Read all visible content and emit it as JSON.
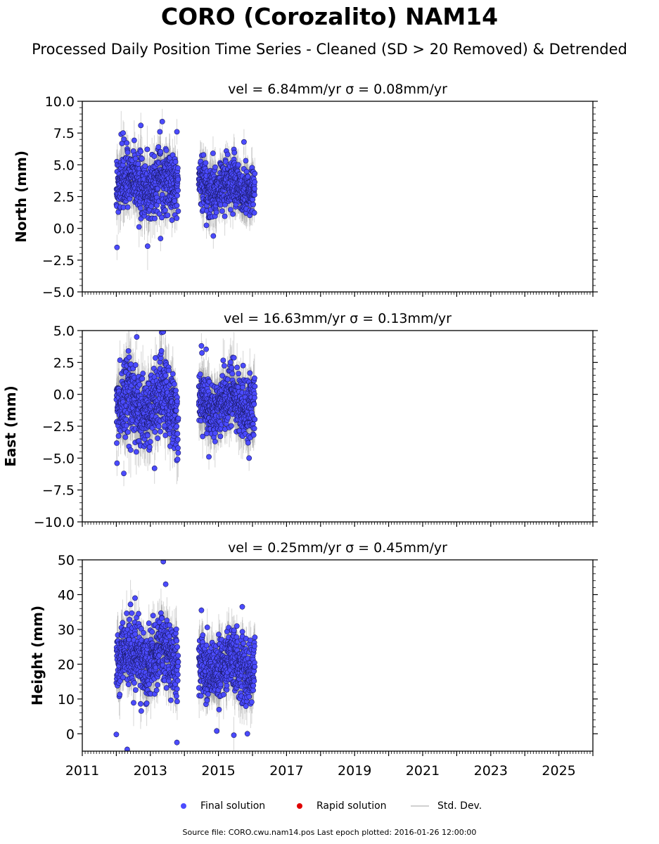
{
  "title": "CORO (Corozalito) NAM14",
  "subtitle": "Processed Daily Position Time Series - Cleaned (SD > 20 Removed) & Detrended",
  "colors": {
    "final": "#4b4bff",
    "rapid": "#e00000",
    "stddev": "#bdbdbd",
    "marker_edge": "#1a1a66"
  },
  "legend": {
    "final_label": "Final solution",
    "rapid_label": "Rapid solution",
    "stddev_label": "Std. Dev."
  },
  "source_note": "Source file: CORO.cwu.nam14.pos  Last epoch plotted: 2016-01-26 12:00:00",
  "chart_data": [
    {
      "type": "scatter",
      "title": "vel = 6.84mm/yr   σ = 0.08mm/yr",
      "ylabel": "North (mm)",
      "xlim": [
        2011.0,
        2026.0
      ],
      "ylim": [
        -5.0,
        10.0
      ],
      "yticks": [
        -5.0,
        -2.5,
        0.0,
        2.5,
        5.0,
        7.5,
        10.0
      ],
      "ytick_labels": [
        "−5.0",
        "−2.5",
        "0.0",
        "2.5",
        "5.0",
        "7.5",
        "10.0"
      ],
      "segments": [
        {
          "x_start": 2012.0,
          "x_end": 2013.82,
          "y_mean": 3.5,
          "y_spread": 1.6,
          "sigma": 1.3
        },
        {
          "x_start": 2014.42,
          "x_end": 2016.07,
          "y_mean": 3.3,
          "y_spread": 1.3,
          "sigma": 1.2
        }
      ],
      "highlight_points": [
        {
          "x": 2012.02,
          "y": -1.5
        },
        {
          "x": 2012.2,
          "y": 7.5
        },
        {
          "x": 2012.72,
          "y": 8.1
        },
        {
          "x": 2013.35,
          "y": 8.4
        },
        {
          "x": 2013.28,
          "y": 7.6
        },
        {
          "x": 2013.78,
          "y": 7.6
        },
        {
          "x": 2013.3,
          "y": -0.8
        },
        {
          "x": 2014.85,
          "y": -0.6
        },
        {
          "x": 2015.75,
          "y": 6.8
        }
      ]
    },
    {
      "type": "scatter",
      "title": "vel = 16.63mm/yr   σ = 0.13mm/yr",
      "ylabel": "East (mm)",
      "xlim": [
        2011.0,
        2026.0
      ],
      "ylim": [
        -10.0,
        5.0
      ],
      "yticks": [
        -10.0,
        -7.5,
        -5.0,
        -2.5,
        0.0,
        2.5,
        5.0
      ],
      "ytick_labels": [
        "−10.0",
        "−7.5",
        "−5.0",
        "−2.5",
        "0.0",
        "2.5",
        "5.0"
      ],
      "segments": [
        {
          "x_start": 2012.0,
          "x_end": 2013.82,
          "y_mean": -0.8,
          "y_spread": 2.0,
          "sigma": 1.5
        },
        {
          "x_start": 2014.42,
          "x_end": 2016.07,
          "y_mean": -0.6,
          "y_spread": 1.5,
          "sigma": 1.4
        }
      ],
      "highlight_points": [
        {
          "x": 2012.22,
          "y": -6.2
        },
        {
          "x": 2012.02,
          "y": -5.4
        },
        {
          "x": 2012.6,
          "y": 4.5
        },
        {
          "x": 2013.38,
          "y": 4.9
        },
        {
          "x": 2014.5,
          "y": 3.8
        },
        {
          "x": 2014.72,
          "y": -4.9
        },
        {
          "x": 2015.9,
          "y": -5.0
        }
      ]
    },
    {
      "type": "scatter",
      "title": "vel = 0.25mm/yr   σ = 0.45mm/yr",
      "ylabel": "Height (mm)",
      "xlim": [
        2011.0,
        2026.0
      ],
      "ylim": [
        -5.0,
        50.0
      ],
      "yticks": [
        0,
        10,
        20,
        30,
        40,
        50
      ],
      "ytick_labels": [
        "0",
        "10",
        "20",
        "30",
        "40",
        "50"
      ],
      "xticks": [
        2011,
        2013,
        2015,
        2017,
        2019,
        2021,
        2023,
        2025
      ],
      "xtick_labels": [
        "2011",
        "2013",
        "2015",
        "2017",
        "2019",
        "2021",
        "2023",
        "2025"
      ],
      "segments": [
        {
          "x_start": 2012.0,
          "x_end": 2013.82,
          "y_mean": 21.5,
          "y_spread": 6.5,
          "sigma": 5.0
        },
        {
          "x_start": 2014.42,
          "x_end": 2016.07,
          "y_mean": 19.5,
          "y_spread": 6.0,
          "sigma": 4.8
        }
      ],
      "highlight_points": [
        {
          "x": 2013.38,
          "y": 49.5
        },
        {
          "x": 2013.45,
          "y": 43.0
        },
        {
          "x": 2012.55,
          "y": 39.0
        },
        {
          "x": 2012.32,
          "y": -4.5
        },
        {
          "x": 2013.78,
          "y": -2.5
        },
        {
          "x": 2014.5,
          "y": 35.5
        },
        {
          "x": 2015.7,
          "y": 36.5
        },
        {
          "x": 2012.0,
          "y": -0.2
        },
        {
          "x": 2015.85,
          "y": 0.0
        },
        {
          "x": 2014.95,
          "y": 0.8
        }
      ]
    }
  ]
}
